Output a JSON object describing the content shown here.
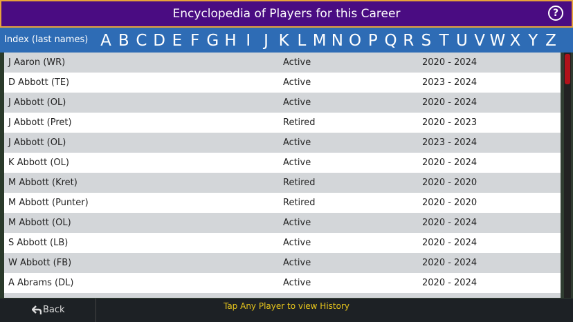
{
  "header": {
    "title": "Encyclopedia of Players for this Career",
    "help": "?"
  },
  "index": {
    "label": "Index (last names)",
    "letters": [
      "A",
      "B",
      "C",
      "D",
      "E",
      "F",
      "G",
      "H",
      "I",
      "J",
      "K",
      "L",
      "M",
      "N",
      "O",
      "P",
      "Q",
      "R",
      "S",
      "T",
      "U",
      "V",
      "W",
      "X",
      "Y",
      "Z"
    ]
  },
  "table": {
    "rows": [
      [
        "J Aaron (WR)",
        "Active",
        "2020 - 2024"
      ],
      [
        "D Abbott (TE)",
        "Active",
        "2023 - 2024"
      ],
      [
        "J Abbott (OL)",
        "Active",
        "2020 - 2024"
      ],
      [
        "J Abbott (Pret)",
        "Retired",
        "2020 - 2023"
      ],
      [
        "J Abbott (OL)",
        "Active",
        "2023 - 2024"
      ],
      [
        "K Abbott (OL)",
        "Active",
        "2020 - 2024"
      ],
      [
        "M Abbott (Kret)",
        "Retired",
        "2020 - 2020"
      ],
      [
        "M Abbott (Punter)",
        "Retired",
        "2020 - 2020"
      ],
      [
        "M Abbott (OL)",
        "Active",
        "2020 - 2024"
      ],
      [
        "S Abbott (LB)",
        "Active",
        "2020 - 2024"
      ],
      [
        "W Abbott (FB)",
        "Active",
        "2020 - 2024"
      ],
      [
        "A Abrams (DL)",
        "Active",
        "2020 - 2024"
      ]
    ]
  },
  "footer": {
    "back": "Back",
    "hint": "Tap Any Player to view History"
  }
}
